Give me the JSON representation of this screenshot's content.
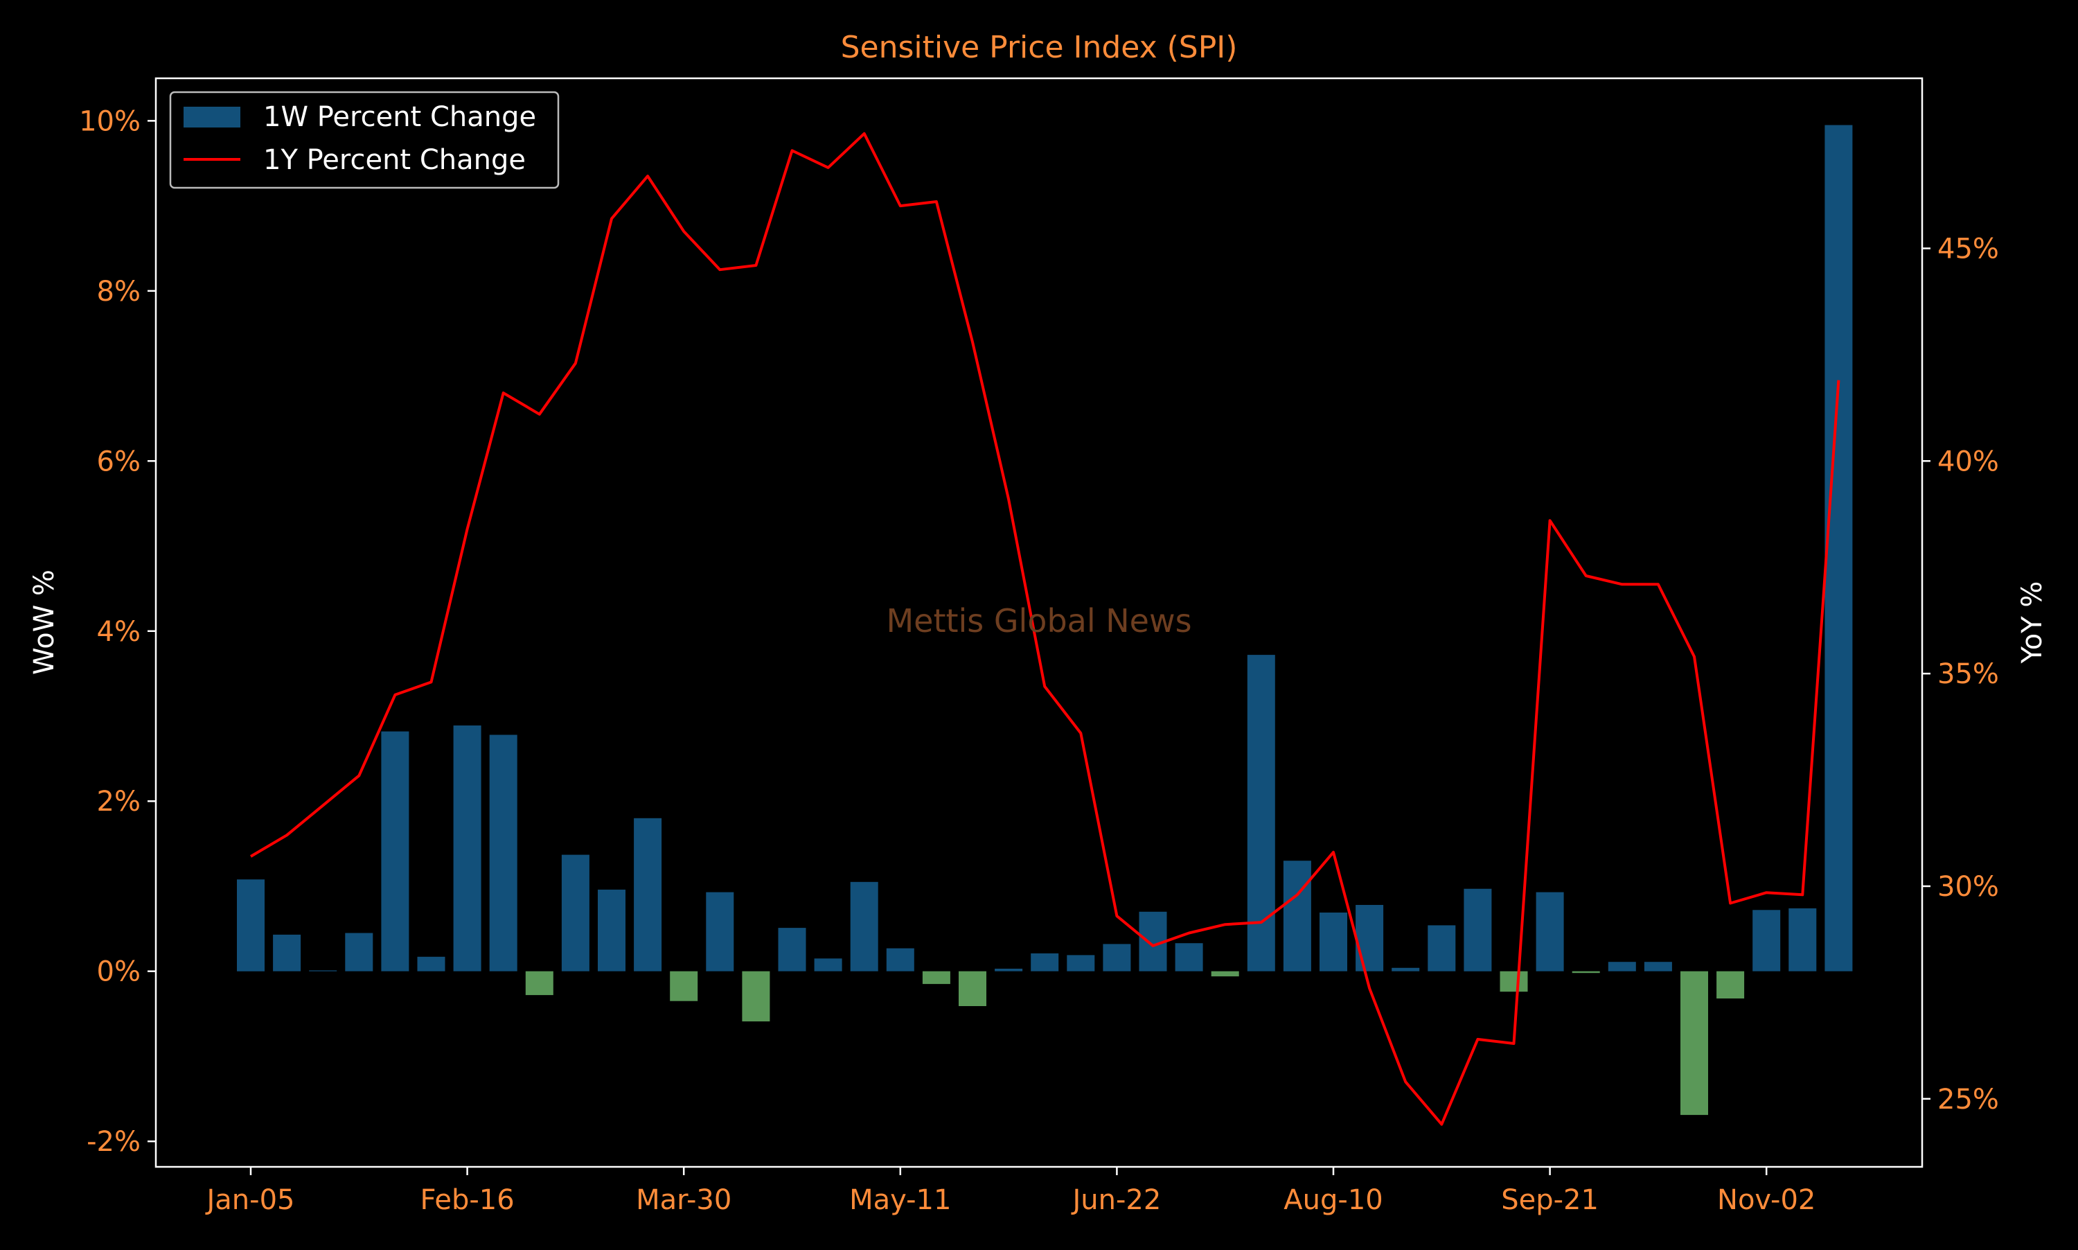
{
  "chart_data": {
    "type": "bar",
    "title": "Sensitive Price Index (SPI)",
    "watermark": "Mettis Global News",
    "y_left_label": "WoW %",
    "y_right_label": "YoY %",
    "x_tick_labels": [
      "Jan-05",
      "Feb-16",
      "Mar-30",
      "May-11",
      "Jun-22",
      "Aug-10",
      "Sep-21",
      "Nov-02"
    ],
    "x_tick_indices": [
      0,
      6,
      12,
      18,
      24,
      30,
      36,
      42
    ],
    "y_left_ticks": [
      -2,
      0,
      2,
      4,
      6,
      8,
      10
    ],
    "y_left_tick_labels": [
      "-2%",
      "0%",
      "2%",
      "4%",
      "6%",
      "8%",
      "10%"
    ],
    "y_left_lim": [
      -2.3,
      10.5
    ],
    "y_right_ticks": [
      25,
      30,
      35,
      40,
      45
    ],
    "y_right_tick_labels": [
      "25%",
      "30%",
      "35%",
      "40%",
      "45%"
    ],
    "y_right_lim": [
      23.4,
      49.0
    ],
    "legend_position": "top-left",
    "series": [
      {
        "name": "1W Percent Change",
        "type": "bar",
        "values": [
          1.08,
          0.43,
          0.01,
          0.45,
          2.82,
          0.17,
          2.89,
          2.78,
          -0.28,
          1.37,
          0.96,
          1.8,
          -0.35,
          0.93,
          -0.59,
          0.51,
          0.15,
          1.05,
          0.27,
          -0.15,
          -0.41,
          0.03,
          0.21,
          0.19,
          0.32,
          0.7,
          0.33,
          -0.06,
          3.72,
          1.3,
          0.69,
          0.78,
          0.04,
          0.54,
          0.97,
          -0.24,
          0.93,
          -0.02,
          0.11,
          0.11,
          -1.69,
          -0.32,
          0.72,
          0.74,
          9.95
        ]
      },
      {
        "name": "1Y Percent Change",
        "type": "line",
        "values": [
          30.7,
          31.2,
          31.9,
          32.6,
          34.5,
          34.8,
          38.4,
          41.6,
          41.1,
          42.3,
          45.7,
          46.7,
          45.4,
          44.5,
          44.6,
          47.3,
          46.9,
          47.7,
          46.0,
          46.1,
          42.8,
          39.1,
          34.7,
          33.6,
          29.3,
          28.6,
          28.9,
          29.1,
          29.15,
          29.8,
          30.8,
          27.6,
          25.4,
          24.4,
          26.4,
          26.3,
          38.6,
          37.3,
          37.1,
          37.1,
          35.4,
          29.6,
          29.85,
          29.8,
          41.9
        ]
      }
    ]
  },
  "colors": {
    "background": "#000000",
    "positive_bar": "#12507a",
    "negative_bar": "#5a9858",
    "line": "#ff0000",
    "title": "#ff8c3a",
    "tick_label": "#ff8c3a",
    "axis_label": "#ffffff",
    "axes_frame": "#ffffff",
    "watermark": "#6e3e20",
    "legend_text": "#ffffff"
  }
}
